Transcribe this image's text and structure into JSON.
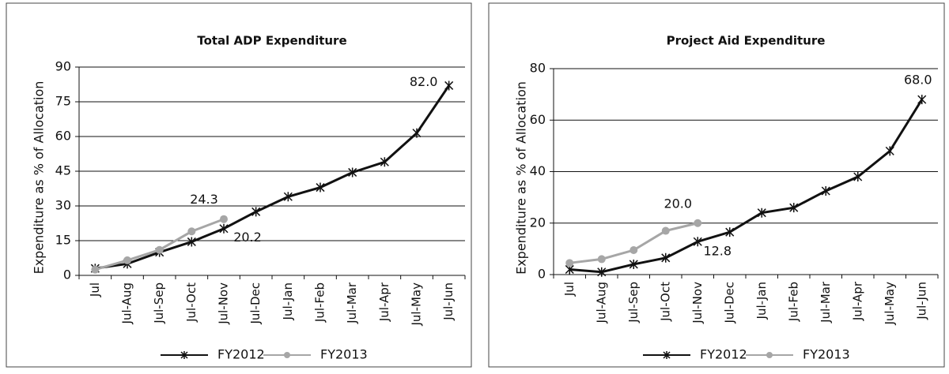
{
  "chart_data": [
    {
      "type": "line",
      "title": "Total ADP Expenditure",
      "y_label": "Expenditure as % of Allocation",
      "categories": [
        "Jul",
        "Jul-Aug",
        "Jul-Sep",
        "Jul-Oct",
        "Jul-Nov",
        "Jul-Dec",
        "Jul-Jan",
        "Jul-Feb",
        "Jul-Mar",
        "Jul-Apr",
        "Jul-May",
        "Jul-Jun"
      ],
      "series": [
        {
          "name": "FY2012",
          "color": "#111111",
          "marker": "star",
          "values": [
            3,
            5,
            10,
            14.5,
            20.2,
            27.5,
            34,
            38,
            44.5,
            49,
            61.5,
            82.0
          ],
          "value_labels": [
            null,
            null,
            null,
            null,
            "20.2",
            null,
            null,
            null,
            null,
            null,
            null,
            "82.0"
          ]
        },
        {
          "name": "FY2013",
          "color": "#a6a6a6",
          "marker": "circle",
          "values": [
            2.5,
            6.5,
            11,
            19,
            24.3,
            null,
            null,
            null,
            null,
            null,
            null,
            null
          ],
          "value_labels": [
            null,
            null,
            null,
            null,
            "24.3",
            null,
            null,
            null,
            null,
            null,
            null,
            null
          ]
        }
      ],
      "ylim": [
        0,
        90
      ],
      "yticks": [
        0,
        15,
        30,
        45,
        60,
        75,
        90
      ],
      "grid": true
    },
    {
      "type": "line",
      "title": "Project Aid Expenditure",
      "y_label": "Expenditure as % of Allocation",
      "categories": [
        "Jul",
        "Jul-Aug",
        "Jul-Sep",
        "Jul-Oct",
        "Jul-Nov",
        "Jul-Dec",
        "Jul-Jan",
        "Jul-Feb",
        "Jul-Mar",
        "Jul-Apr",
        "Jul-May",
        "Jul-Jun"
      ],
      "series": [
        {
          "name": "FY2012",
          "color": "#111111",
          "marker": "star",
          "values": [
            2,
            1,
            4,
            6.5,
            12.8,
            16.5,
            24,
            26,
            32.5,
            38,
            48,
            68.0
          ],
          "value_labels": [
            null,
            null,
            null,
            null,
            "12.8",
            null,
            null,
            null,
            null,
            null,
            null,
            "68.0"
          ]
        },
        {
          "name": "FY2013",
          "color": "#a6a6a6",
          "marker": "circle",
          "values": [
            4.5,
            6,
            9.5,
            17,
            20.0,
            null,
            null,
            null,
            null,
            null,
            null,
            null
          ],
          "value_labels": [
            null,
            null,
            null,
            null,
            "20.0",
            null,
            null,
            null,
            null,
            null,
            null,
            null
          ]
        }
      ],
      "ylim": [
        0,
        80
      ],
      "yticks": [
        0,
        20,
        40,
        60,
        80
      ],
      "grid": true
    }
  ]
}
